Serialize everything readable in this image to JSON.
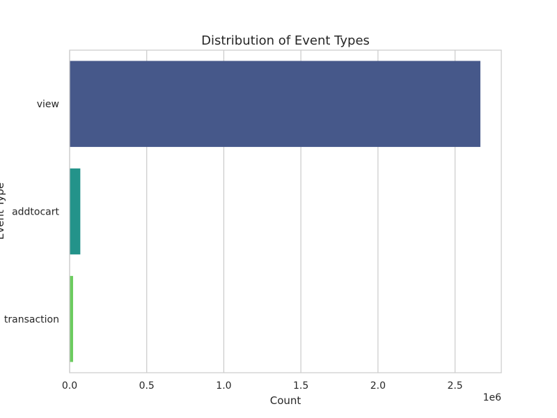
{
  "chart_data": {
    "type": "bar",
    "orientation": "horizontal",
    "title": "Distribution of Event Types",
    "xlabel": "Count",
    "ylabel": "Event Type",
    "x_offset_label": "1e6",
    "categories": [
      "view",
      "addtocart",
      "transaction"
    ],
    "values": [
      2664312,
      69332,
      22457
    ],
    "xlim": [
      0,
      2.8
    ],
    "xticks": [
      0,
      0.5,
      1.0,
      1.5,
      2.0,
      2.5
    ],
    "xtick_labels": [
      "0.0",
      "0.5",
      "1.0",
      "1.5",
      "2.0",
      "2.5"
    ],
    "grid": "x",
    "colors": [
      "#46588a",
      "#23938a",
      "#6ccc5f"
    ]
  }
}
